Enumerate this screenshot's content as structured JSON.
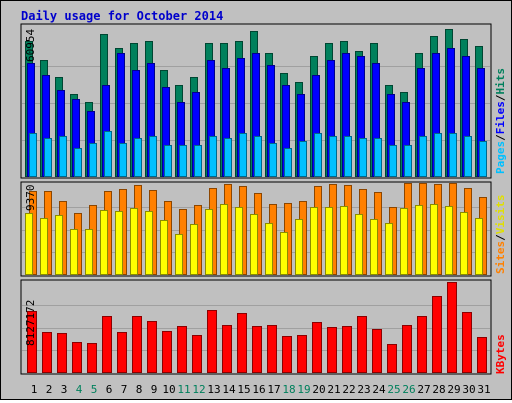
{
  "title": "Daily usage for October 2014",
  "colors": {
    "background": "#c0c0c0",
    "title": "#0000cc",
    "hits": "#00805c",
    "files": "#0000ff",
    "pages": "#00c0ff",
    "visits": "#ffff00",
    "sites": "#ff8000",
    "kbytes": "#ff0000",
    "weekend_label": "#00805c",
    "weekday_label": "#000000"
  },
  "legend": {
    "pages": "Pages",
    "files": "Files",
    "hits": "Hits",
    "sites": "Sites",
    "visits": "Visits",
    "kbytes": "KBytes",
    "sep": "/"
  },
  "chart_data": [
    {
      "type": "bar",
      "panel": "top",
      "max_label": "60954",
      "ymax": 60954,
      "categories": [
        "1",
        "2",
        "3",
        "4",
        "5",
        "6",
        "7",
        "8",
        "9",
        "10",
        "11",
        "12",
        "13",
        "14",
        "15",
        "16",
        "17",
        "18",
        "19",
        "20",
        "21",
        "22",
        "23",
        "24",
        "25",
        "26",
        "27",
        "28",
        "29",
        "30",
        "31"
      ],
      "weekend_days": [
        "4",
        "5",
        "11",
        "12",
        "18",
        "19",
        "25",
        "26"
      ],
      "series": [
        {
          "name": "Hits",
          "values": [
            56000,
            48000,
            41000,
            34000,
            31000,
            59000,
            53000,
            55000,
            56000,
            44000,
            38000,
            41000,
            55000,
            55000,
            56000,
            60000,
            51000,
            43000,
            39000,
            50000,
            55000,
            56000,
            52000,
            55000,
            38000,
            35000,
            51000,
            58000,
            61000,
            57000,
            54000
          ]
        },
        {
          "name": "Files",
          "values": [
            47000,
            42000,
            36000,
            32000,
            27000,
            38000,
            51000,
            44000,
            47000,
            37000,
            31000,
            35000,
            48000,
            45000,
            49000,
            51000,
            46000,
            38000,
            34000,
            42000,
            48000,
            51000,
            50000,
            47000,
            34000,
            31000,
            45000,
            51000,
            53000,
            50000,
            45000
          ]
        },
        {
          "name": "Pages",
          "values": [
            18000,
            16000,
            17000,
            12000,
            14000,
            19000,
            14000,
            16000,
            17000,
            13000,
            13000,
            13000,
            17000,
            16000,
            18000,
            17000,
            14000,
            12000,
            15000,
            18000,
            17000,
            17000,
            16000,
            16000,
            13000,
            13000,
            17000,
            18000,
            18000,
            17000,
            15000
          ]
        }
      ]
    },
    {
      "type": "bar",
      "panel": "middle",
      "max_label": "9370",
      "ymax": 9370,
      "categories": [
        "1",
        "2",
        "3",
        "4",
        "5",
        "6",
        "7",
        "8",
        "9",
        "10",
        "11",
        "12",
        "13",
        "14",
        "15",
        "16",
        "17",
        "18",
        "19",
        "20",
        "21",
        "22",
        "23",
        "24",
        "25",
        "26",
        "27",
        "28",
        "29",
        "30",
        "31"
      ],
      "series": [
        {
          "name": "Sites",
          "values": [
            8600,
            8600,
            7600,
            6400,
            7200,
            8700,
            8900,
            9300,
            8800,
            7600,
            6800,
            7200,
            9000,
            9400,
            9200,
            8400,
            7300,
            7400,
            7600,
            9200,
            9400,
            9300,
            8900,
            8500,
            7000,
            9500,
            9500,
            9400,
            9500,
            9000,
            8000
          ]
        },
        {
          "name": "Visits",
          "values": [
            6400,
            5900,
            6200,
            4700,
            4700,
            6700,
            6600,
            6900,
            6600,
            5700,
            4200,
            5300,
            6800,
            7300,
            7000,
            6300,
            5400,
            4400,
            5800,
            7000,
            7000,
            7100,
            6300,
            5800,
            5400,
            6900,
            7200,
            7300,
            7100,
            6500,
            5900
          ]
        }
      ]
    },
    {
      "type": "bar",
      "panel": "bottom",
      "max_label": "8127172",
      "ymax": 8127172,
      "categories": [
        "1",
        "2",
        "3",
        "4",
        "5",
        "6",
        "7",
        "8",
        "9",
        "10",
        "11",
        "12",
        "13",
        "14",
        "15",
        "16",
        "17",
        "18",
        "19",
        "20",
        "21",
        "22",
        "23",
        "24",
        "25",
        "26",
        "27",
        "28",
        "29",
        "30",
        "31"
      ],
      "series": [
        {
          "name": "KBytes",
          "values": [
            5510000,
            3650000,
            3580000,
            2740000,
            2660000,
            5120000,
            3620000,
            5120000,
            4660000,
            3770000,
            4190000,
            3350000,
            5660000,
            4280000,
            5360000,
            4230000,
            4250000,
            3340000,
            3420000,
            4530000,
            4090000,
            4210000,
            5130000,
            3960000,
            2610000,
            4290000,
            5130000,
            6890000,
            8130000,
            5430000,
            3180000
          ]
        }
      ]
    }
  ]
}
